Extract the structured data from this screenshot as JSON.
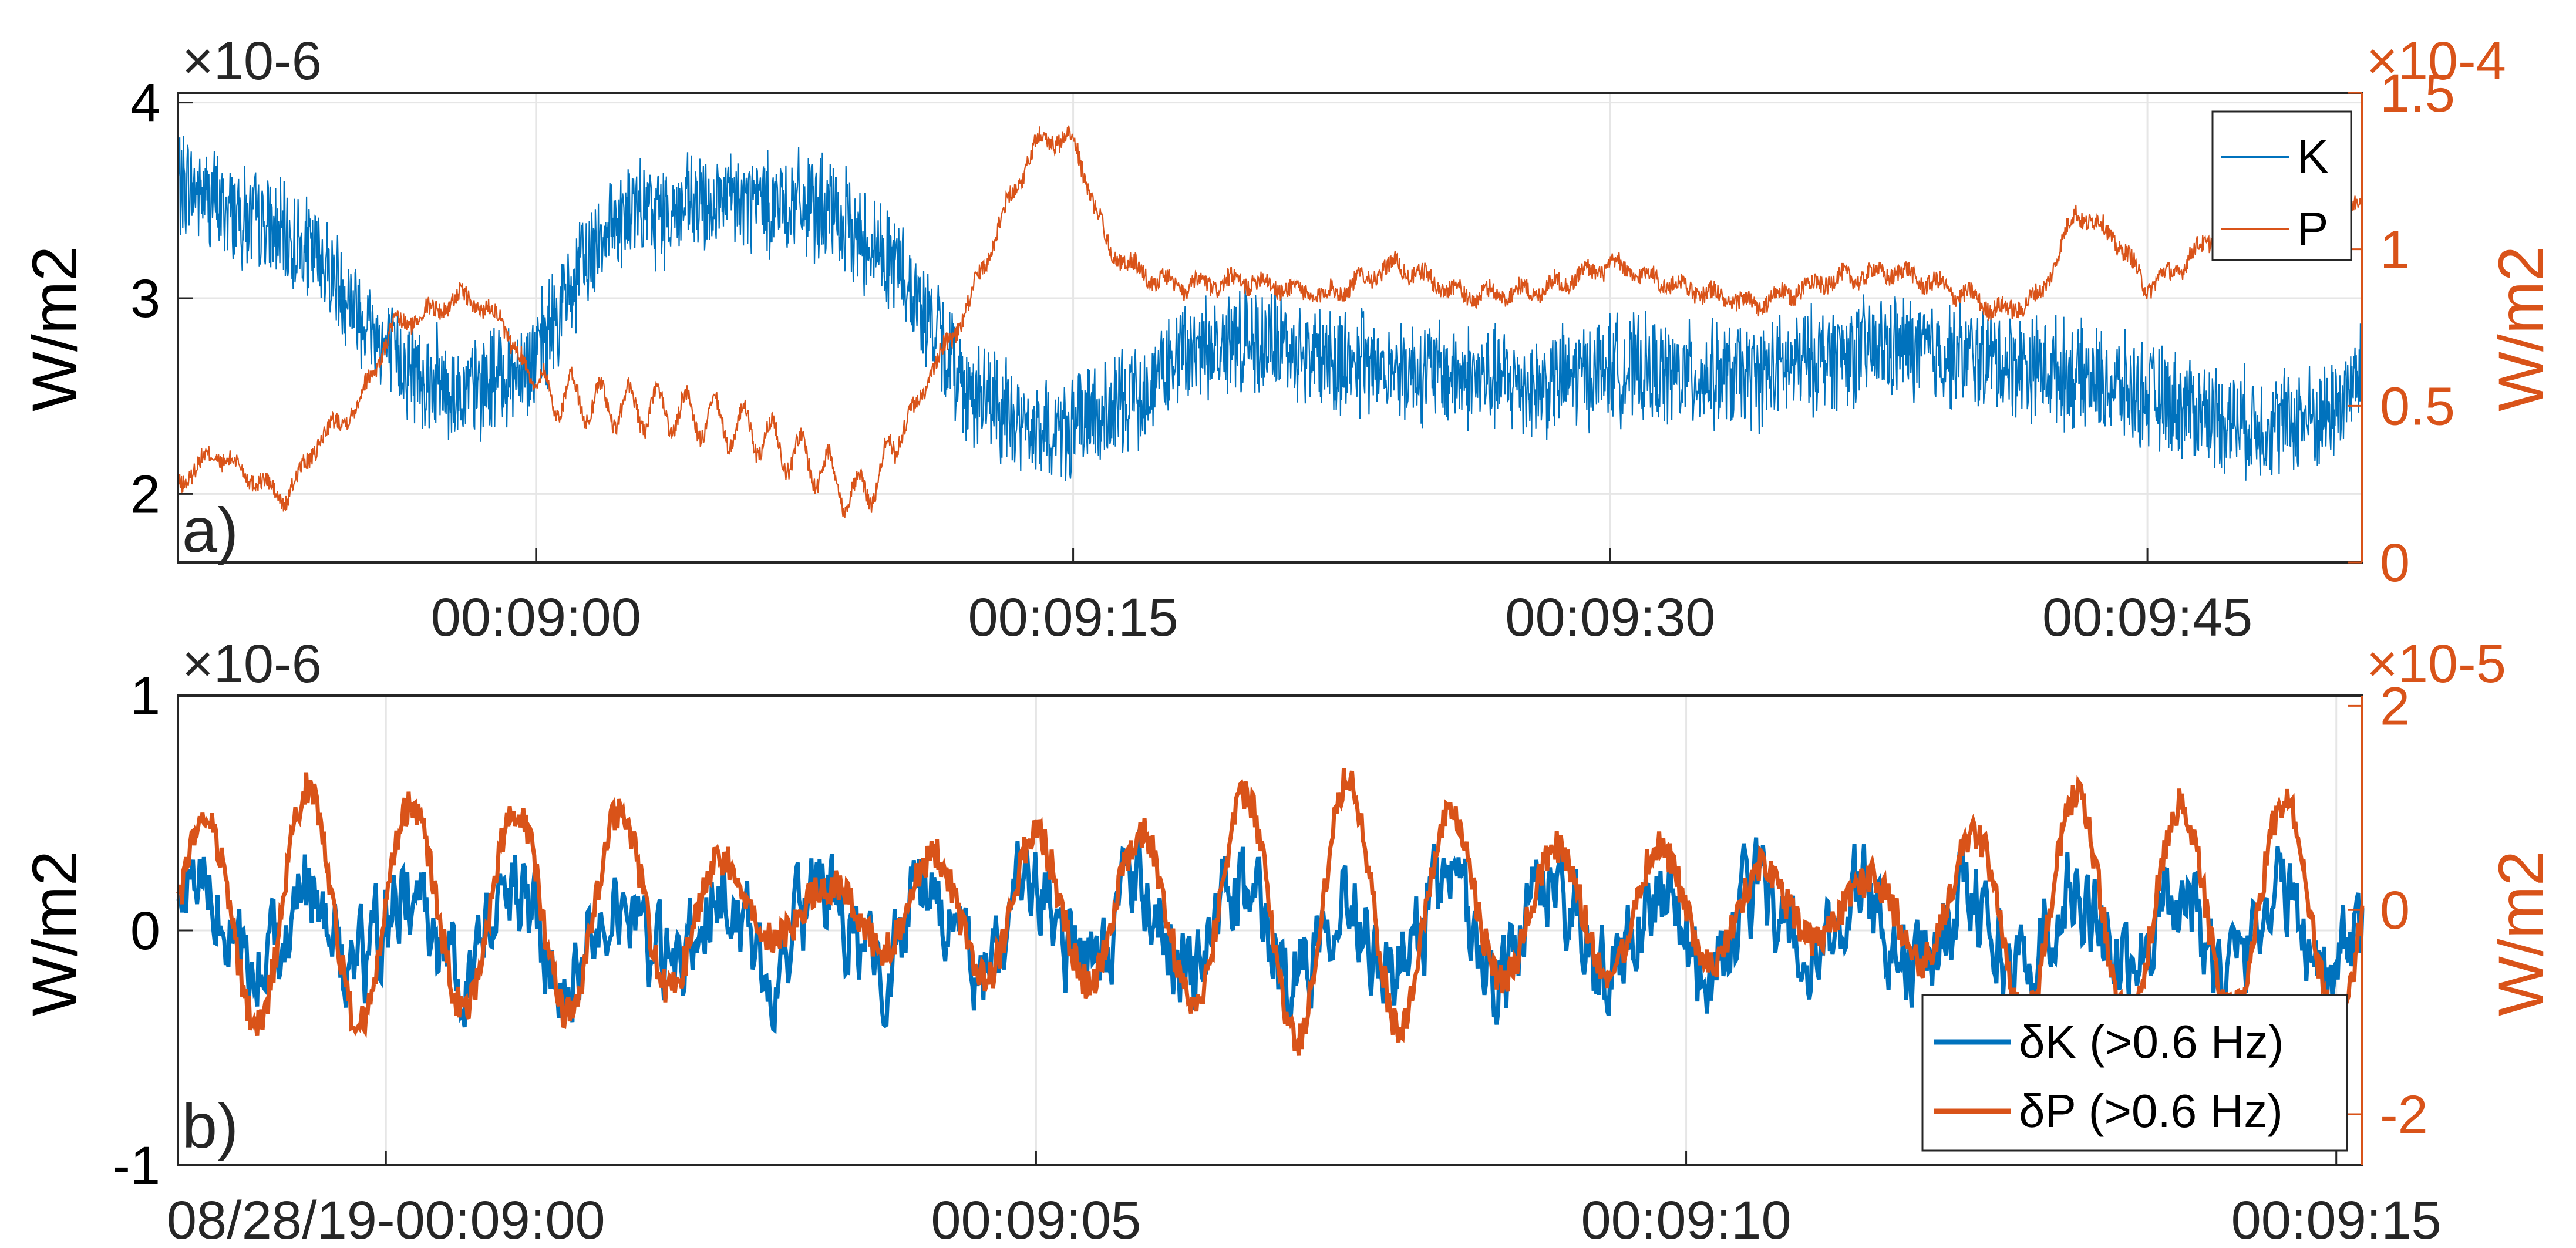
{
  "colors": {
    "k": "#0072BD",
    "p": "#D95319",
    "axis": "#262626",
    "grid": "#e6e6e6"
  },
  "panel_labels": [
    "a)",
    "b)"
  ],
  "chart_data": [
    {
      "type": "line",
      "panel": "a)",
      "x_range_seconds": [
        "00:08:50",
        "00:09:51"
      ],
      "x_ticks": [
        "00:09:00",
        "00:09:15",
        "00:09:30",
        "00:09:45"
      ],
      "left_axis": {
        "label": "W/m2",
        "multiplier": "×10-6",
        "ticks": [
          "2",
          "3",
          "4"
        ],
        "ylim": [
          1.65,
          4.05
        ]
      },
      "right_axis": {
        "label": "W/m2",
        "multiplier": "×10-4",
        "ticks": [
          "0",
          "0.5",
          "1",
          "1.5"
        ],
        "ylim": [
          0,
          1.5
        ]
      },
      "legend": {
        "placement": "top-right",
        "entries": [
          "K",
          "P"
        ]
      },
      "grid": true,
      "series": [
        {
          "name": "K",
          "axis": "left",
          "note_noise_amplitude": 0.32,
          "x": [
            "00:08:50",
            "00:08:52",
            "00:08:54",
            "00:08:56",
            "00:08:58",
            "00:09:00",
            "00:09:02",
            "00:09:04",
            "00:09:06",
            "00:09:08",
            "00:09:10",
            "00:09:12",
            "00:09:14",
            "00:09:16",
            "00:09:18",
            "00:09:20",
            "00:09:22",
            "00:09:24",
            "00:09:26",
            "00:09:28",
            "00:09:30",
            "00:09:32",
            "00:09:34",
            "00:09:36",
            "00:09:38",
            "00:09:40",
            "00:09:42",
            "00:09:44",
            "00:09:46",
            "00:09:48",
            "00:09:50",
            "00:09:51"
          ],
          "values": [
            3.6,
            3.4,
            3.2,
            2.7,
            2.5,
            2.7,
            3.4,
            3.45,
            3.5,
            3.45,
            3.2,
            2.55,
            2.3,
            2.4,
            2.7,
            2.8,
            2.7,
            2.65,
            2.6,
            2.55,
            2.65,
            2.6,
            2.6,
            2.7,
            2.75,
            2.7,
            2.65,
            2.55,
            2.45,
            2.35,
            2.4,
            2.6
          ]
        },
        {
          "name": "P",
          "axis": "right",
          "x": [
            "00:08:50",
            "00:08:51",
            "00:08:52",
            "00:08:53",
            "00:08:54",
            "00:08:55",
            "00:08:56",
            "00:08:57",
            "00:08:58",
            "00:08:59",
            "00:09:00",
            "00:09:02",
            "00:09:04",
            "00:09:06",
            "00:09:08",
            "00:09:09",
            "00:09:10",
            "00:09:11",
            "00:09:12",
            "00:09:13",
            "00:09:14",
            "00:09:15",
            "00:09:16",
            "00:09:17",
            "00:09:18",
            "00:09:20",
            "00:09:22",
            "00:09:24",
            "00:09:26",
            "00:09:28",
            "00:09:30",
            "00:09:32",
            "00:09:34",
            "00:09:36",
            "00:09:38",
            "00:09:40",
            "00:09:41",
            "00:09:42",
            "00:09:43",
            "00:09:44",
            "00:09:45",
            "00:09:46",
            "00:09:48",
            "00:09:49",
            "00:09:50",
            "00:09:51"
          ],
          "values": [
            0.25,
            0.35,
            0.28,
            0.2,
            0.4,
            0.5,
            0.75,
            0.8,
            0.85,
            0.78,
            0.55,
            0.5,
            0.48,
            0.42,
            0.3,
            0.2,
            0.35,
            0.6,
            0.8,
            1.1,
            1.35,
            1.35,
            1.0,
            0.92,
            0.88,
            0.9,
            0.85,
            0.95,
            0.85,
            0.87,
            0.95,
            0.88,
            0.82,
            0.9,
            0.93,
            0.85,
            0.8,
            0.85,
            1.12,
            1.05,
            0.88,
            0.95,
            1.18,
            1.1,
            1.05,
            1.15
          ]
        }
      ]
    },
    {
      "type": "line",
      "panel": "b)",
      "x_range_seconds": [
        "00:08:58.4",
        "00:09:15.2"
      ],
      "x_ticks": [
        "08/28/19-00:09:00",
        "00:09:05",
        "00:09:10",
        "00:09:15"
      ],
      "left_axis": {
        "label": "W/m2",
        "multiplier": "×10-6",
        "ticks": [
          "-1",
          "0",
          "1"
        ],
        "ylim": [
          -1,
          1
        ]
      },
      "right_axis": {
        "label": "W/m2",
        "multiplier": "×10-5",
        "ticks": [
          "-2",
          "0",
          "2"
        ],
        "ylim": [
          -2.5,
          2.1
        ]
      },
      "legend": {
        "placement": "bottom-right",
        "entries": [
          "δK (>0.6 Hz)",
          "δP (>0.6 Hz)"
        ]
      },
      "grid": true,
      "series": [
        {
          "name": "δK (>0.6 Hz)",
          "axis": "left",
          "note_amplitude": 0.35
        },
        {
          "name": "δP (>0.6 Hz)",
          "axis": "right",
          "note_amplitude": 1.1,
          "note_period_seconds": 0.8
        }
      ]
    }
  ]
}
